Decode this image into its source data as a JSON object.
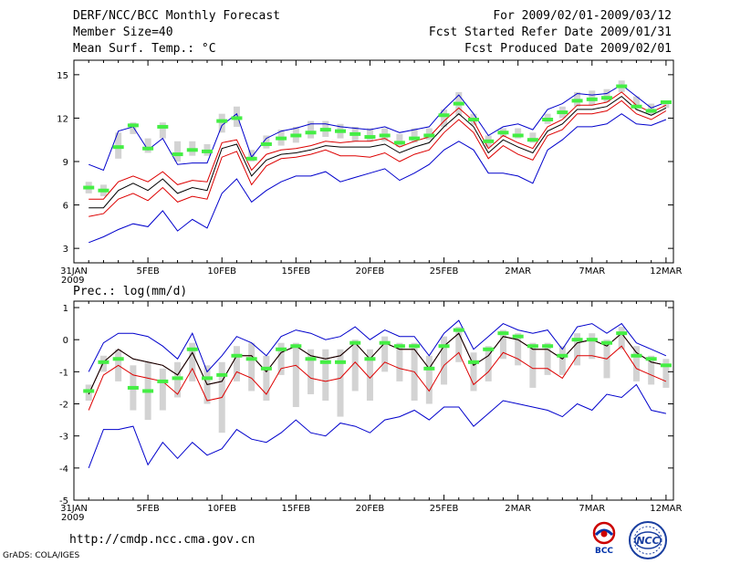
{
  "header": {
    "title": "DERF/NCC/BCC Monthly Forecast",
    "member": "Member Size=40",
    "variable": "Mean Surf. Temp.: °C",
    "period": "For 2009/02/01-2009/03/12",
    "started": "Fcst Started Refer Date 2009/01/31",
    "produced": "Fcst Produced Date 2009/02/01"
  },
  "footer": {
    "url": "http://cmdp.ncc.cma.gov.cn",
    "credit": "GrADS: COLA/IGES",
    "logo_bcc": "BCC",
    "logo_ncc": "NCC"
  },
  "colors": {
    "outer": "#0000cc",
    "inner": "#dd0000",
    "mean": "#000000",
    "box": "#d3d3d3",
    "marker": "#44ee44"
  },
  "chart_data": [
    {
      "type": "line",
      "title": "Mean Surf. Temp.: °C",
      "x_tick_labels": [
        "31JAN",
        "5FEB",
        "10FEB",
        "15FEB",
        "20FEB",
        "25FEB",
        "2MAR",
        "7MAR",
        "12MAR"
      ],
      "x_tick_days": [
        0,
        5,
        10,
        15,
        20,
        25,
        30,
        35,
        40
      ],
      "year_label": "2009",
      "ylim": [
        2,
        16
      ],
      "y_ticks": [
        3,
        6,
        9,
        12,
        15
      ],
      "days": [
        1,
        2,
        3,
        4,
        5,
        6,
        7,
        8,
        9,
        10,
        11,
        12,
        13,
        14,
        15,
        16,
        17,
        18,
        19,
        20,
        21,
        22,
        23,
        24,
        25,
        26,
        27,
        28,
        29,
        30,
        31,
        32,
        33,
        34,
        35,
        36,
        37,
        38,
        39,
        40
      ],
      "series": [
        {
          "name": "upper",
          "values": [
            8.8,
            8.4,
            11.1,
            11.4,
            9.8,
            10.6,
            8.8,
            8.9,
            8.9,
            11.5,
            12.3,
            9.3,
            10.6,
            11.1,
            11.3,
            11.6,
            11.6,
            11.4,
            11.3,
            11.2,
            11.4,
            11.0,
            11.2,
            11.4,
            12.6,
            13.6,
            12.3,
            10.8,
            11.4,
            11.6,
            11.2,
            12.6,
            13.0,
            13.7,
            13.6,
            13.7,
            14.3,
            13.5,
            12.7,
            13.1
          ]
        },
        {
          "name": "upper_mid",
          "values": [
            6.4,
            6.4,
            7.6,
            8.0,
            7.6,
            8.3,
            7.4,
            7.7,
            7.6,
            10.3,
            10.5,
            8.4,
            9.5,
            9.8,
            9.9,
            10.1,
            10.4,
            10.3,
            10.4,
            10.4,
            10.6,
            10.0,
            10.4,
            10.7,
            11.8,
            12.7,
            11.8,
            9.9,
            10.8,
            10.3,
            9.9,
            11.4,
            11.9,
            12.9,
            12.9,
            13.1,
            13.8,
            12.9,
            12.4,
            12.9
          ]
        },
        {
          "name": "mean",
          "values": [
            5.8,
            5.8,
            7.0,
            7.5,
            7.0,
            7.8,
            6.8,
            7.2,
            7.0,
            9.9,
            10.2,
            8.0,
            9.1,
            9.5,
            9.6,
            9.8,
            10.1,
            10.0,
            10.0,
            10.0,
            10.2,
            9.6,
            10.0,
            10.3,
            11.4,
            12.3,
            11.4,
            9.6,
            10.5,
            10.0,
            9.6,
            11.1,
            11.6,
            12.6,
            12.6,
            12.8,
            13.5,
            12.6,
            12.2,
            12.7
          ]
        },
        {
          "name": "lower_mid",
          "values": [
            5.2,
            5.4,
            6.4,
            6.8,
            6.3,
            7.2,
            6.2,
            6.6,
            6.4,
            9.3,
            9.7,
            7.4,
            8.7,
            9.2,
            9.3,
            9.5,
            9.8,
            9.4,
            9.4,
            9.3,
            9.6,
            9.0,
            9.5,
            9.8,
            11.0,
            11.9,
            11.0,
            9.2,
            10.1,
            9.5,
            9.1,
            10.8,
            11.2,
            12.3,
            12.3,
            12.5,
            13.2,
            12.3,
            11.9,
            12.5
          ]
        },
        {
          "name": "lower",
          "values": [
            3.4,
            3.8,
            4.3,
            4.7,
            4.5,
            5.6,
            4.2,
            5.0,
            4.4,
            6.8,
            7.8,
            6.2,
            7.0,
            7.6,
            8.0,
            8.0,
            8.3,
            7.6,
            7.9,
            8.2,
            8.5,
            7.7,
            8.2,
            8.8,
            9.8,
            10.4,
            9.8,
            8.2,
            8.2,
            8.0,
            7.5,
            9.8,
            10.5,
            11.4,
            11.4,
            11.6,
            12.3,
            11.6,
            11.5,
            11.9
          ]
        }
      ],
      "box_low": [
        6.8,
        6.6,
        9.2,
        10.9,
        9.6,
        10.6,
        9.0,
        9.4,
        9.4,
        11.0,
        11.4,
        9.0,
        9.9,
        10.1,
        10.3,
        10.6,
        10.7,
        10.6,
        10.4,
        10.4,
        10.4,
        10.0,
        10.3,
        10.5,
        11.4,
        12.2,
        11.5,
        10.0,
        10.7,
        10.6,
        10.3,
        11.6,
        12.0,
        12.8,
        12.9,
        13.1,
        13.8,
        12.9,
        12.2,
        12.7
      ],
      "box_high": [
        7.6,
        7.4,
        11.0,
        11.7,
        10.6,
        11.7,
        10.4,
        10.4,
        10.2,
        12.3,
        12.8,
        9.8,
        10.8,
        11.2,
        11.4,
        11.8,
        11.8,
        11.6,
        11.4,
        11.3,
        11.3,
        10.9,
        11.3,
        11.3,
        12.6,
        13.8,
        12.3,
        10.8,
        11.3,
        11.3,
        11.0,
        12.3,
        12.8,
        13.8,
        13.9,
        14.0,
        14.6,
        13.5,
        13.0,
        13.2
      ],
      "markers": [
        7.2,
        7.0,
        10.0,
        11.5,
        9.9,
        11.4,
        9.5,
        9.8,
        9.7,
        11.8,
        12.0,
        9.2,
        10.2,
        10.6,
        10.8,
        11.0,
        11.2,
        11.1,
        10.9,
        10.7,
        10.8,
        10.3,
        10.6,
        10.8,
        12.2,
        13.0,
        11.9,
        10.4,
        11.0,
        10.8,
        10.5,
        11.9,
        12.4,
        13.2,
        13.3,
        13.4,
        14.2,
        12.8,
        12.5,
        13.1
      ]
    },
    {
      "type": "line",
      "title": "Prec.: log(mm/d)",
      "x_tick_labels": [
        "31JAN",
        "5FEB",
        "10FEB",
        "15FEB",
        "20FEB",
        "25FEB",
        "2MAR",
        "7MAR",
        "12MAR"
      ],
      "x_tick_days": [
        0,
        5,
        10,
        15,
        20,
        25,
        30,
        35,
        40
      ],
      "year_label": "2009",
      "ylim": [
        -5,
        1.2
      ],
      "y_ticks": [
        1,
        0,
        -1,
        -2,
        -3,
        -4,
        -5
      ],
      "days": [
        1,
        2,
        3,
        4,
        5,
        6,
        7,
        8,
        9,
        10,
        11,
        12,
        13,
        14,
        15,
        16,
        17,
        18,
        19,
        20,
        21,
        22,
        23,
        24,
        25,
        26,
        27,
        28,
        29,
        30,
        31,
        32,
        33,
        34,
        35,
        36,
        37,
        38,
        39,
        40
      ],
      "series": [
        {
          "name": "upper",
          "values": [
            -1.0,
            -0.1,
            0.2,
            0.2,
            0.1,
            -0.2,
            -0.6,
            0.2,
            -1.0,
            -0.5,
            0.1,
            -0.1,
            -0.5,
            0.1,
            0.3,
            0.2,
            0.0,
            0.1,
            0.4,
            0.0,
            0.3,
            0.1,
            0.1,
            -0.5,
            0.2,
            0.6,
            -0.3,
            0.1,
            0.5,
            0.3,
            0.2,
            0.3,
            -0.3,
            0.4,
            0.5,
            0.2,
            0.5,
            -0.1,
            -0.3,
            -0.5
          ]
        },
        {
          "name": "upper_mid",
          "values": [
            -1.7,
            -0.7,
            -0.3,
            -0.6,
            -0.7,
            -0.8,
            -1.1,
            -0.4,
            -1.4,
            -1.3,
            -0.5,
            -0.5,
            -1.0,
            -0.4,
            -0.2,
            -0.5,
            -0.6,
            -0.5,
            -0.1,
            -0.6,
            -0.1,
            -0.3,
            -0.3,
            -0.9,
            -0.2,
            0.2,
            -0.8,
            -0.5,
            0.1,
            0.0,
            -0.3,
            -0.3,
            -0.6,
            -0.1,
            0.0,
            -0.2,
            0.2,
            -0.4,
            -0.7,
            -0.8
          ]
        },
        {
          "name": "mean",
          "values": [
            -1.7,
            -0.7,
            -0.3,
            -0.6,
            -0.7,
            -0.8,
            -1.1,
            -0.4,
            -1.4,
            -1.3,
            -0.5,
            -0.5,
            -1.0,
            -0.4,
            -0.2,
            -0.5,
            -0.6,
            -0.5,
            -0.1,
            -0.6,
            -0.1,
            -0.3,
            -0.3,
            -0.9,
            -0.2,
            0.2,
            -0.8,
            -0.5,
            0.1,
            0.0,
            -0.3,
            -0.3,
            -0.6,
            -0.1,
            0.0,
            -0.2,
            0.2,
            -0.4,
            -0.7,
            -0.8
          ]
        },
        {
          "name": "lower_mid",
          "values": [
            -2.2,
            -1.1,
            -0.8,
            -1.1,
            -1.2,
            -1.3,
            -1.7,
            -0.9,
            -1.9,
            -1.8,
            -1.0,
            -1.2,
            -1.7,
            -0.9,
            -0.8,
            -1.2,
            -1.3,
            -1.2,
            -0.7,
            -1.2,
            -0.7,
            -0.9,
            -1.0,
            -1.6,
            -0.8,
            -0.4,
            -1.4,
            -1.0,
            -0.4,
            -0.6,
            -0.9,
            -0.9,
            -1.2,
            -0.5,
            -0.5,
            -0.6,
            -0.2,
            -0.9,
            -1.1,
            -1.3
          ]
        },
        {
          "name": "lower",
          "values": [
            -4.0,
            -2.8,
            -2.8,
            -2.7,
            -3.9,
            -3.2,
            -3.7,
            -3.2,
            -3.6,
            -3.4,
            -2.8,
            -3.1,
            -3.2,
            -2.9,
            -2.5,
            -2.9,
            -3.0,
            -2.6,
            -2.7,
            -2.9,
            -2.5,
            -2.4,
            -2.2,
            -2.5,
            -2.1,
            -2.1,
            -2.7,
            -2.3,
            -1.9,
            -2.0,
            -2.1,
            -2.2,
            -2.4,
            -2.0,
            -2.2,
            -1.7,
            -1.8,
            -1.4,
            -2.2,
            -2.3
          ]
        }
      ],
      "box_low": [
        -1.9,
        -1.0,
        -1.3,
        -2.2,
        -2.5,
        -2.2,
        -1.8,
        -1.3,
        -2.0,
        -2.9,
        -1.3,
        -1.6,
        -1.9,
        -1.1,
        -2.1,
        -1.7,
        -1.9,
        -2.4,
        -1.6,
        -1.9,
        -1.0,
        -1.3,
        -1.9,
        -2.0,
        -1.4,
        -0.7,
        -1.6,
        -1.3,
        -0.6,
        -0.8,
        -1.5,
        -1.1,
        -1.1,
        -0.8,
        -0.6,
        -1.2,
        -0.3,
        -1.3,
        -1.4,
        -1.5
      ],
      "box_high": [
        -1.4,
        -0.5,
        -0.3,
        -0.8,
        -0.7,
        -0.9,
        -0.7,
        -0.1,
        -0.8,
        -0.7,
        -0.2,
        -0.1,
        -0.5,
        -0.1,
        -0.1,
        -0.3,
        -0.3,
        -0.3,
        0.0,
        -0.3,
        0.1,
        -0.1,
        -0.1,
        -0.5,
        0.1,
        0.4,
        -0.4,
        -0.2,
        0.3,
        0.2,
        -0.1,
        -0.1,
        -0.2,
        0.2,
        0.2,
        0.0,
        0.4,
        -0.2,
        -0.5,
        -0.6
      ],
      "markers": [
        -1.6,
        -0.7,
        -0.6,
        -1.5,
        -1.6,
        -1.3,
        -1.2,
        -0.3,
        -1.2,
        -1.1,
        -0.5,
        -0.6,
        -0.9,
        -0.3,
        -0.2,
        -0.6,
        -0.7,
        -0.7,
        -0.1,
        -0.6,
        -0.1,
        -0.2,
        -0.2,
        -0.9,
        -0.2,
        0.3,
        -0.7,
        -0.3,
        0.2,
        0.1,
        -0.2,
        -0.2,
        -0.5,
        0.0,
        0.0,
        -0.1,
        0.2,
        -0.5,
        -0.6,
        -0.8
      ]
    }
  ]
}
